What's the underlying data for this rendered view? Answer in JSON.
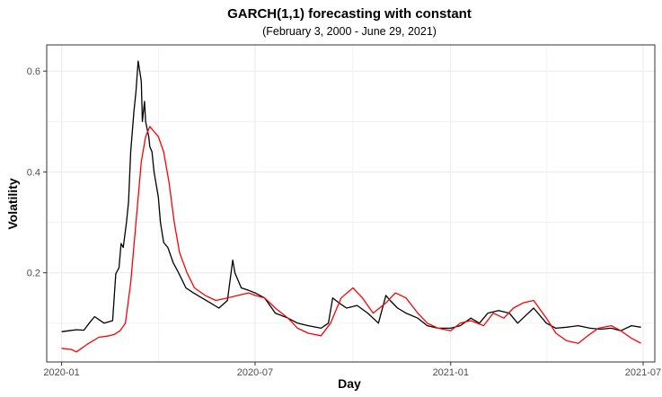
{
  "chart_data": {
    "type": "line",
    "title": "GARCH(1,1) forecasting with constant",
    "subtitle": "(February 3, 2000 - June 29, 2021)",
    "xlabel": "Day",
    "ylabel": "Volatility",
    "xlim": [
      "2019-12-18",
      "2021-07-12"
    ],
    "ylim": [
      0.023,
      0.652
    ],
    "x_ticks": [
      "2020-01-01",
      "2020-07-01",
      "2021-01-01",
      "2021-07-01"
    ],
    "x_tick_labels": [
      "2020-01",
      "2020-07",
      "2021-01",
      "2021-07"
    ],
    "y_ticks": [
      0.2,
      0.4,
      0.6
    ],
    "y_tick_labels": [
      "0.2",
      "0.4",
      "0.6"
    ],
    "grid": true,
    "legend": "none",
    "colors": {
      "series_black": "#000000",
      "series_red": "#ff0000",
      "panel_border": "#333333",
      "grid": "#ebebeb"
    },
    "series": [
      {
        "color": "#000000",
        "x": [
          "2020-01-01",
          "2020-01-08",
          "2020-01-15",
          "2020-01-22",
          "2020-01-27",
          "2020-02-01",
          "2020-02-10",
          "2020-02-18",
          "2020-02-21",
          "2020-02-24",
          "2020-02-26",
          "2020-02-28",
          "2020-03-02",
          "2020-03-04",
          "2020-03-06",
          "2020-03-09",
          "2020-03-11",
          "2020-03-13",
          "2020-03-16",
          "2020-03-17",
          "2020-03-19",
          "2020-03-20",
          "2020-03-23",
          "2020-03-24",
          "2020-03-26",
          "2020-03-28",
          "2020-04-01",
          "2020-04-03",
          "2020-04-06",
          "2020-04-10",
          "2020-04-15",
          "2020-04-20",
          "2020-04-27",
          "2020-05-04",
          "2020-05-12",
          "2020-05-20",
          "2020-05-28",
          "2020-06-05",
          "2020-06-10",
          "2020-06-12",
          "2020-06-18",
          "2020-06-25",
          "2020-07-01",
          "2020-07-10",
          "2020-07-20",
          "2020-08-01",
          "2020-08-10",
          "2020-08-20",
          "2020-09-01",
          "2020-09-08",
          "2020-09-12",
          "2020-09-18",
          "2020-09-25",
          "2020-10-05",
          "2020-10-15",
          "2020-10-25",
          "2020-11-01",
          "2020-11-05",
          "2020-11-12",
          "2020-11-20",
          "2020-12-01",
          "2020-12-10",
          "2020-12-20",
          "2021-01-01",
          "2021-01-10",
          "2021-01-20",
          "2021-01-28",
          "2021-02-05",
          "2021-02-15",
          "2021-02-25",
          "2021-03-05",
          "2021-03-10",
          "2021-03-20",
          "2021-04-01",
          "2021-04-10",
          "2021-04-20",
          "2021-05-01",
          "2021-05-12",
          "2021-05-22",
          "2021-06-01",
          "2021-06-10",
          "2021-06-20",
          "2021-06-29"
        ],
        "values": [
          0.083,
          0.085,
          0.087,
          0.086,
          0.1,
          0.113,
          0.1,
          0.105,
          0.198,
          0.21,
          0.258,
          0.25,
          0.3,
          0.34,
          0.44,
          0.52,
          0.56,
          0.62,
          0.58,
          0.5,
          0.54,
          0.5,
          0.47,
          0.45,
          0.44,
          0.4,
          0.35,
          0.3,
          0.26,
          0.25,
          0.22,
          0.2,
          0.17,
          0.16,
          0.15,
          0.14,
          0.13,
          0.145,
          0.225,
          0.2,
          0.17,
          0.165,
          0.16,
          0.15,
          0.12,
          0.11,
          0.1,
          0.095,
          0.09,
          0.1,
          0.15,
          0.14,
          0.13,
          0.135,
          0.12,
          0.1,
          0.155,
          0.145,
          0.13,
          0.12,
          0.11,
          0.095,
          0.09,
          0.09,
          0.095,
          0.11,
          0.1,
          0.12,
          0.125,
          0.12,
          0.1,
          0.11,
          0.13,
          0.1,
          0.09,
          0.092,
          0.095,
          0.09,
          0.088,
          0.09,
          0.085,
          0.095,
          0.092
        ]
      },
      {
        "color": "#ff0000",
        "x": [
          "2020-01-01",
          "2020-01-10",
          "2020-01-15",
          "2020-01-25",
          "2020-02-05",
          "2020-02-15",
          "2020-02-20",
          "2020-02-25",
          "2020-03-01",
          "2020-03-06",
          "2020-03-11",
          "2020-03-16",
          "2020-03-20",
          "2020-03-24",
          "2020-03-28",
          "2020-04-01",
          "2020-04-06",
          "2020-04-11",
          "2020-04-16",
          "2020-04-21",
          "2020-04-28",
          "2020-05-05",
          "2020-05-15",
          "2020-05-25",
          "2020-06-05",
          "2020-06-15",
          "2020-06-25",
          "2020-07-01",
          "2020-07-10",
          "2020-07-20",
          "2020-08-01",
          "2020-08-10",
          "2020-08-20",
          "2020-09-01",
          "2020-09-10",
          "2020-09-20",
          "2020-10-01",
          "2020-10-10",
          "2020-10-20",
          "2020-11-01",
          "2020-11-10",
          "2020-11-20",
          "2020-12-01",
          "2020-12-10",
          "2020-12-20",
          "2021-01-01",
          "2021-01-10",
          "2021-01-20",
          "2021-02-01",
          "2021-02-10",
          "2021-02-20",
          "2021-03-01",
          "2021-03-10",
          "2021-03-20",
          "2021-04-01",
          "2021-04-10",
          "2021-04-20",
          "2021-05-01",
          "2021-05-10",
          "2021-05-20",
          "2021-06-01",
          "2021-06-10",
          "2021-06-20",
          "2021-06-29"
        ],
        "values": [
          0.05,
          0.048,
          0.043,
          0.058,
          0.072,
          0.075,
          0.078,
          0.085,
          0.1,
          0.18,
          0.3,
          0.42,
          0.47,
          0.49,
          0.48,
          0.47,
          0.44,
          0.38,
          0.3,
          0.24,
          0.2,
          0.17,
          0.155,
          0.145,
          0.15,
          0.155,
          0.16,
          0.155,
          0.15,
          0.13,
          0.11,
          0.09,
          0.08,
          0.075,
          0.1,
          0.15,
          0.17,
          0.15,
          0.12,
          0.14,
          0.16,
          0.15,
          0.12,
          0.1,
          0.09,
          0.085,
          0.1,
          0.105,
          0.095,
          0.12,
          0.11,
          0.13,
          0.14,
          0.145,
          0.11,
          0.08,
          0.065,
          0.06,
          0.075,
          0.09,
          0.095,
          0.085,
          0.07,
          0.06
        ]
      }
    ]
  }
}
